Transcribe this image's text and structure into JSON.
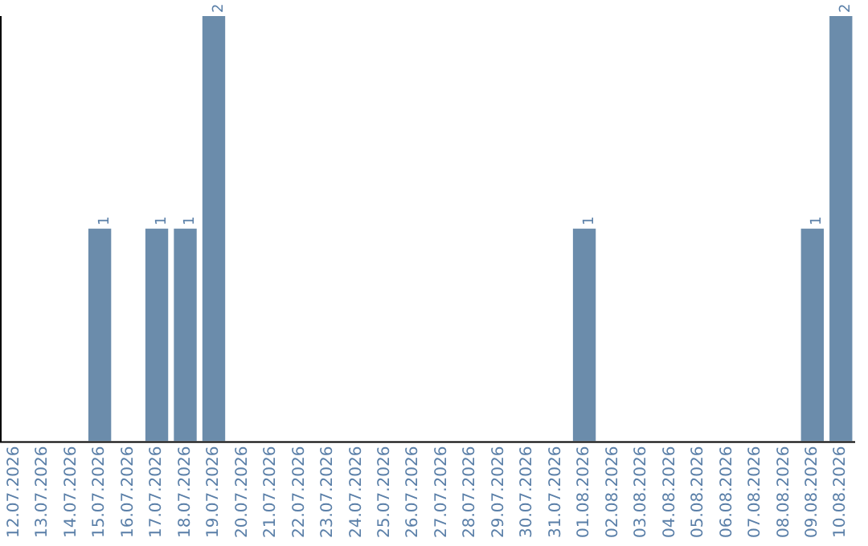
{
  "chart_data": {
    "type": "bar",
    "categories": [
      "12.07.2026",
      "13.07.2026",
      "14.07.2026",
      "15.07.2026",
      "16.07.2026",
      "17.07.2026",
      "18.07.2026",
      "19.07.2026",
      "20.07.2026",
      "21.07.2026",
      "22.07.2026",
      "23.07.2026",
      "24.07.2026",
      "25.07.2026",
      "26.07.2026",
      "27.07.2026",
      "28.07.2026",
      "29.07.2026",
      "30.07.2026",
      "31.07.2026",
      "01.08.2026",
      "02.08.2026",
      "03.08.2026",
      "04.08.2026",
      "05.08.2026",
      "06.08.2026",
      "07.08.2026",
      "08.08.2026",
      "09.08.2026",
      "10.08.2026"
    ],
    "values": [
      0,
      0,
      0,
      1,
      0,
      1,
      1,
      2,
      0,
      0,
      0,
      0,
      0,
      0,
      0,
      0,
      0,
      0,
      0,
      0,
      1,
      0,
      0,
      0,
      0,
      0,
      0,
      0,
      1,
      2
    ],
    "value_labels": [
      null,
      null,
      null,
      "1",
      null,
      "1",
      "1",
      "2",
      null,
      null,
      null,
      null,
      null,
      null,
      null,
      null,
      null,
      null,
      null,
      null,
      "1",
      null,
      null,
      null,
      null,
      null,
      null,
      null,
      "1",
      "2"
    ],
    "color": "#6b8cab",
    "ylim": [
      0,
      2
    ],
    "tick_labels": "x",
    "grid": false,
    "legend": false
  }
}
